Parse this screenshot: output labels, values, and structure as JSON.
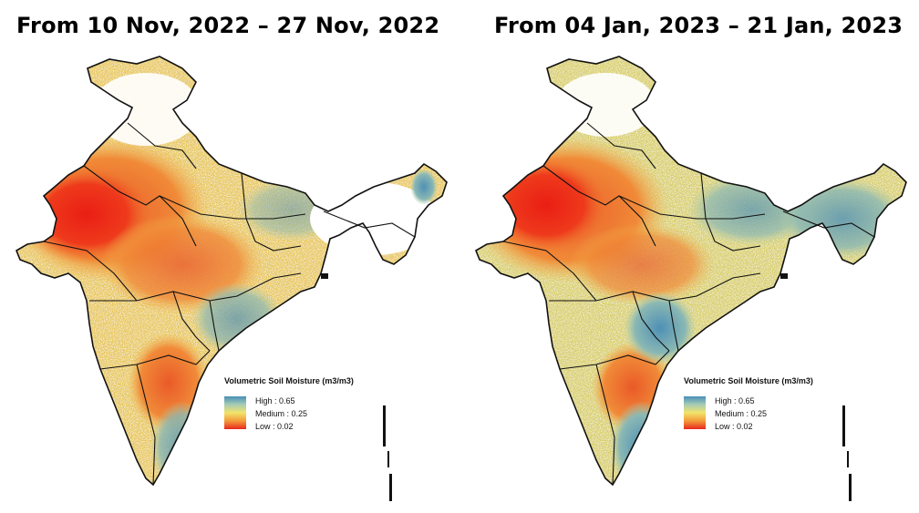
{
  "panels": [
    {
      "title": "From 10 Nov, 2022 – 27 Nov, 2022",
      "legend": {
        "title": "Volumetric Soil Moisture (m3/m3)",
        "high": "High : 0.65",
        "medium": "Medium : 0.25",
        "low": "Low : 0.02"
      }
    },
    {
      "title": "From 04 Jan, 2023 – 21 Jan, 2023",
      "legend": {
        "title": "Volumetric Soil Moisture (m3/m3)",
        "high": "High : 0.65",
        "medium": "Medium : 0.25",
        "low": "Low : 0.02"
      }
    }
  ],
  "colors": {
    "high": "#4a8fb8",
    "medium": "#f2e46a",
    "low": "#e8281c",
    "border": "#111111"
  }
}
